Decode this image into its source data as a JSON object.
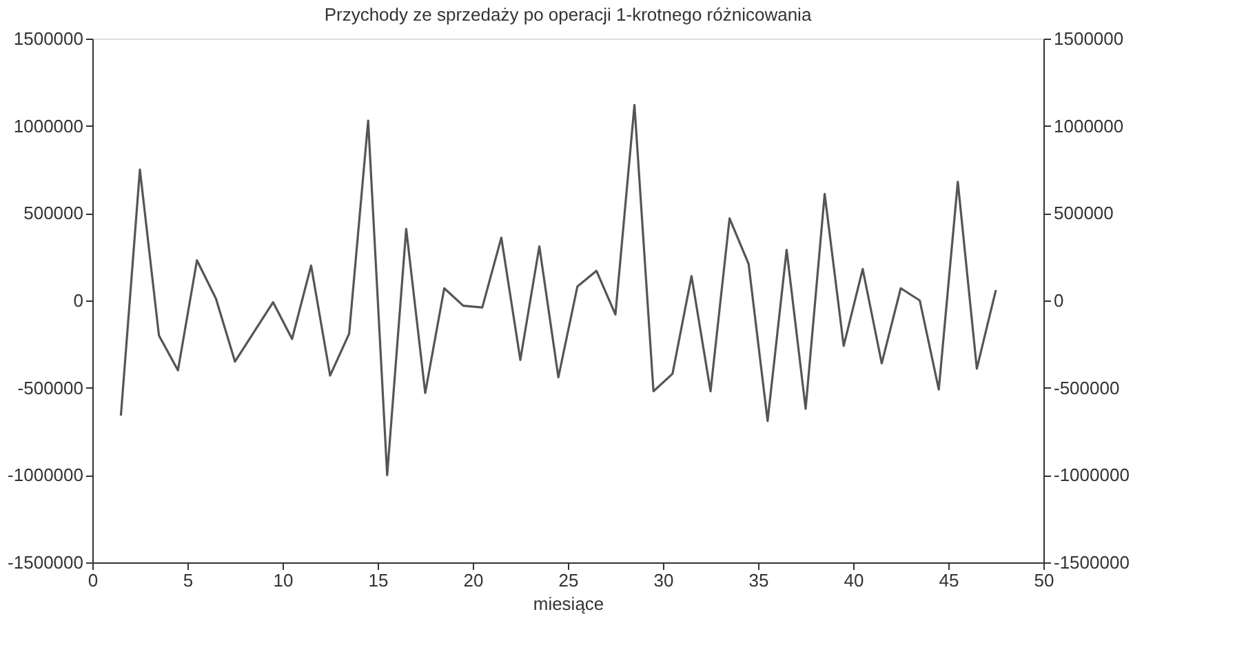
{
  "chart_data": {
    "type": "line",
    "title": "Przychody ze sprzedaży po operacji 1-krotnego różnicowania",
    "xlabel": "miesiące",
    "x": [
      1.5,
      2.5,
      3.5,
      4.5,
      5.5,
      6.5,
      7.5,
      8.5,
      9.5,
      10.5,
      11.5,
      12.5,
      13.5,
      14.5,
      15.5,
      16.5,
      17.5,
      18.5,
      19.5,
      20.5,
      21.5,
      22.5,
      23.5,
      24.5,
      25.5,
      26.5,
      27.5,
      28.5,
      29.5,
      30.5,
      31.5,
      32.5,
      33.5,
      34.5,
      35.5,
      36.5,
      37.5,
      38.5,
      39.5,
      40.5,
      41.5,
      42.5,
      43.5,
      44.5,
      45.5,
      46.5,
      47.5
    ],
    "series": [
      {
        "color": "#555555",
        "values": [
          -660000,
          750000,
          -200000,
          -400000,
          230000,
          10000,
          -350000,
          -180000,
          -10000,
          -220000,
          200000,
          -430000,
          -190000,
          1030000,
          -1000000,
          410000,
          -530000,
          70000,
          -30000,
          -40000,
          360000,
          -340000,
          310000,
          -440000,
          80000,
          170000,
          -80000,
          1120000,
          -520000,
          -420000,
          140000,
          -520000,
          470000,
          210000,
          -690000,
          290000,
          -620000,
          610000,
          -260000,
          180000,
          -360000,
          70000,
          0,
          -510000,
          680000,
          -390000,
          60000
        ]
      }
    ],
    "xlim": [
      0,
      50
    ],
    "xticks": [
      0,
      5,
      10,
      15,
      20,
      25,
      30,
      35,
      40,
      45,
      50
    ],
    "ylim": [
      -1500000,
      1500000
    ],
    "yticks": [
      -1500000,
      -1000000,
      -500000,
      0,
      500000,
      1000000,
      1500000
    ],
    "y2lim": [
      -1500000,
      1500000
    ],
    "y2ticks": [
      -1500000,
      -1000000,
      -500000,
      0,
      500000,
      1000000,
      1500000
    ],
    "grid": false,
    "marker": "none",
    "line_style": "solid"
  }
}
